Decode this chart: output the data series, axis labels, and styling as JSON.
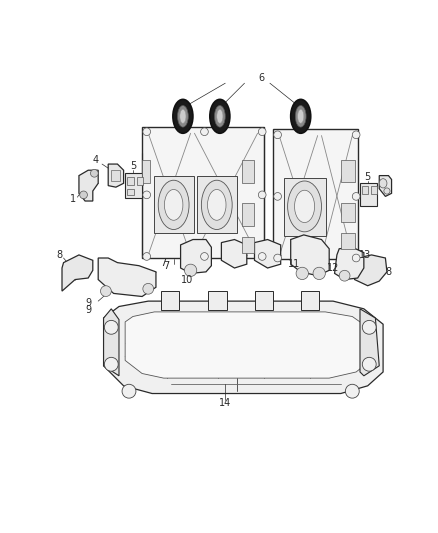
{
  "bg_color": "#ffffff",
  "fig_width": 4.38,
  "fig_height": 5.33,
  "dpi": 100,
  "lc": "#2a2a2a",
  "fc_light": "#f0f0f0",
  "fc_med": "#e0e0e0",
  "fc_dark": "#c8c8c8",
  "lw_main": 0.9,
  "lw_thin": 0.5,
  "label_fs": 7
}
